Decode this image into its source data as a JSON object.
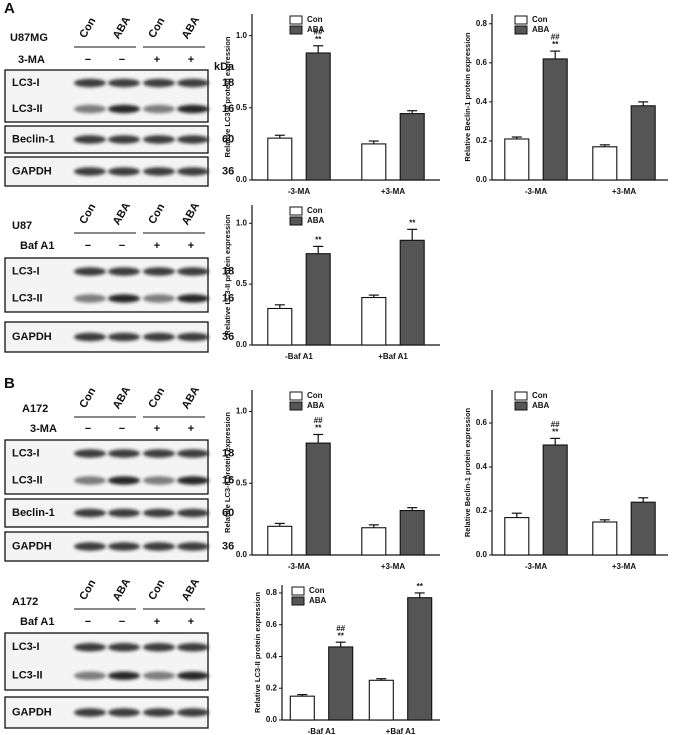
{
  "panel_labels": [
    "A",
    "B"
  ],
  "blots": [
    {
      "cell_line": "U87MG",
      "lanes": [
        "Con",
        "ABA",
        "Con",
        "ABA"
      ],
      "treatment": "3-MA",
      "signs": [
        "−",
        "−",
        "+",
        "+"
      ],
      "kda_unit": "kDa",
      "boxes": [
        [
          {
            "name": "LC3-I",
            "kda": 18
          },
          {
            "name": "LC3-II",
            "kda": 16
          }
        ],
        [
          {
            "name": "Beclin-1",
            "kda": 60
          }
        ],
        [
          {
            "name": "GAPDH",
            "kda": 36
          }
        ]
      ]
    },
    {
      "cell_line": "U87",
      "lanes": [
        "Con",
        "ABA",
        "Con",
        "ABA"
      ],
      "treatment": "Baf A1",
      "signs": [
        "−",
        "−",
        "+",
        "+"
      ],
      "boxes": [
        [
          {
            "name": "LC3-I",
            "kda": 18
          },
          {
            "name": "LC3-II",
            "kda": 16
          }
        ],
        [
          {
            "name": "GAPDH",
            "kda": 36
          }
        ]
      ]
    },
    {
      "cell_line": "A172",
      "lanes": [
        "Con",
        "ABA",
        "Con",
        "ABA"
      ],
      "treatment": "3-MA",
      "signs": [
        "−",
        "−",
        "+",
        "+"
      ],
      "boxes": [
        [
          {
            "name": "LC3-I",
            "kda": 18
          },
          {
            "name": "LC3-II",
            "kda": 16
          }
        ],
        [
          {
            "name": "Beclin-1",
            "kda": 60
          }
        ],
        [
          {
            "name": "GAPDH",
            "kda": 36
          }
        ]
      ]
    },
    {
      "cell_line": "A172",
      "lanes": [
        "Con",
        "ABA",
        "Con",
        "ABA"
      ],
      "treatment": "Baf A1",
      "signs": [
        "−",
        "−",
        "+",
        "+"
      ],
      "boxes": [
        [
          {
            "name": "LC3-I"
          },
          {
            "name": "LC3-II"
          }
        ],
        [
          {
            "name": "GAPDH"
          }
        ]
      ]
    }
  ],
  "chart_data": [
    {
      "type": "bar",
      "ylabel": "Relative LC3-II protein expression",
      "categories": [
        "-3-MA",
        "+3-MA"
      ],
      "ylim": [
        0,
        1.15
      ],
      "yticks": [
        {
          "value": 0,
          "label": "0.0"
        },
        0.5,
        {
          "value": 1,
          "label": "1.0"
        }
      ],
      "series": [
        {
          "name": "Con",
          "color": "#ffffff",
          "values": [
            0.29,
            0.25
          ],
          "errors": [
            0.02,
            0.02
          ]
        },
        {
          "name": "ABA",
          "color": "#555555",
          "values": [
            0.88,
            0.46
          ],
          "errors": [
            0.05,
            0.02
          ],
          "annotations": [
            [
              "##",
              "**"
            ],
            null
          ]
        }
      ]
    },
    {
      "type": "bar",
      "ylabel": "Relative Beclin-1 protein expression",
      "categories": [
        "-3-MA",
        "+3-MA"
      ],
      "ylim": [
        0,
        0.85
      ],
      "yticks": [
        {
          "value": 0,
          "label": "0.0"
        },
        0.2,
        0.4,
        0.6,
        0.8
      ],
      "series": [
        {
          "name": "Con",
          "color": "#ffffff",
          "values": [
            0.21,
            0.17
          ],
          "errors": [
            0.01,
            0.01
          ]
        },
        {
          "name": "ABA",
          "color": "#555555",
          "values": [
            0.62,
            0.38
          ],
          "errors": [
            0.04,
            0.02
          ],
          "annotations": [
            [
              "##",
              "**"
            ],
            null
          ]
        }
      ]
    },
    {
      "type": "bar",
      "ylabel": "Relative LC3-II protein expression",
      "categories": [
        "-Baf A1",
        "+Baf A1"
      ],
      "ylim": [
        0,
        1.15
      ],
      "yticks": [
        {
          "value": 0,
          "label": "0.0"
        },
        0.5,
        {
          "value": 1,
          "label": "1.0"
        }
      ],
      "series": [
        {
          "name": "Con",
          "color": "#ffffff",
          "values": [
            0.3,
            0.39
          ],
          "errors": [
            0.03,
            0.02
          ]
        },
        {
          "name": "ABA",
          "color": "#555555",
          "values": [
            0.75,
            0.86
          ],
          "errors": [
            0.06,
            0.09
          ],
          "annotations": [
            [
              "**"
            ],
            [
              "**"
            ]
          ]
        }
      ]
    },
    {
      "type": "bar",
      "ylabel": "Relative LC3-II protein expression",
      "categories": [
        "-3-MA",
        "+3-MA"
      ],
      "ylim": [
        0,
        1.15
      ],
      "yticks": [
        {
          "value": 0,
          "label": "0.0"
        },
        0.5,
        {
          "value": 1,
          "label": "1.0"
        }
      ],
      "series": [
        {
          "name": "Con",
          "color": "#ffffff",
          "values": [
            0.2,
            0.19
          ],
          "errors": [
            0.02,
            0.02
          ]
        },
        {
          "name": "ABA",
          "color": "#555555",
          "values": [
            0.78,
            0.31
          ],
          "errors": [
            0.06,
            0.02
          ],
          "annotations": [
            [
              "##",
              "**"
            ],
            null
          ]
        }
      ]
    },
    {
      "type": "bar",
      "ylabel": "Relative Beclin-1 protein expression",
      "categories": [
        "-3-MA",
        "+3-MA"
      ],
      "ylim": [
        0,
        0.75
      ],
      "yticks": [
        {
          "value": 0,
          "label": "0.0"
        },
        0.2,
        0.4,
        0.6
      ],
      "series": [
        {
          "name": "Con",
          "color": "#ffffff",
          "values": [
            0.17,
            0.15
          ],
          "errors": [
            0.02,
            0.01
          ]
        },
        {
          "name": "ABA",
          "color": "#555555",
          "values": [
            0.5,
            0.24
          ],
          "errors": [
            0.03,
            0.02
          ],
          "annotations": [
            [
              "##",
              "**"
            ],
            null
          ]
        }
      ]
    },
    {
      "type": "bar",
      "ylabel": "Relative LC3-II protein expression",
      "categories": [
        "-Baf A1",
        "+Baf A1"
      ],
      "ylim": [
        0,
        0.85
      ],
      "yticks": [
        {
          "value": 0,
          "label": "0.0"
        },
        0.2,
        0.4,
        0.6,
        0.8
      ],
      "series": [
        {
          "name": "Con",
          "color": "#ffffff",
          "values": [
            0.15,
            0.25
          ],
          "errors": [
            0.01,
            0.01
          ]
        },
        {
          "name": "ABA",
          "color": "#555555",
          "values": [
            0.46,
            0.77
          ],
          "errors": [
            0.03,
            0.03
          ],
          "annotations": [
            [
              "##",
              "**"
            ],
            [
              "**"
            ]
          ]
        }
      ]
    }
  ]
}
